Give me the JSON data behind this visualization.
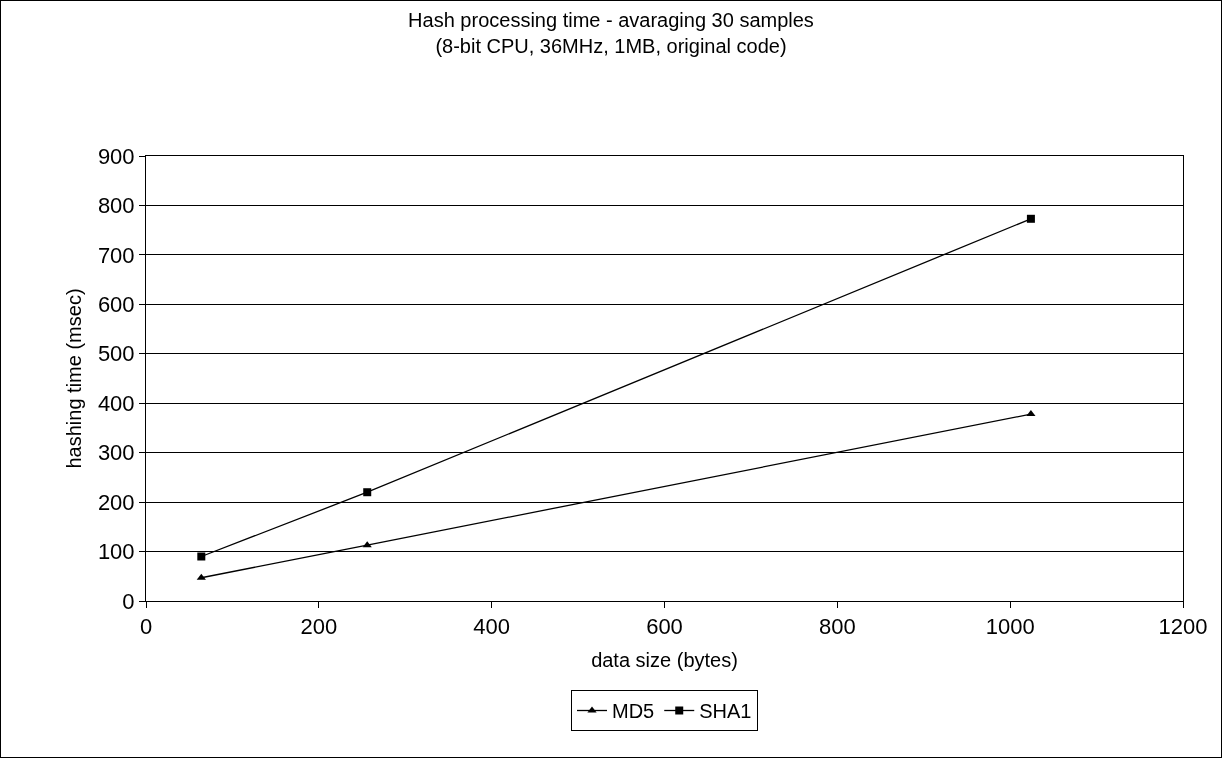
{
  "chart_data": {
    "type": "line",
    "title": "Hash processing time - avaraging 30 samples\n(8-bit CPU, 36MHz, 1MB, original code)",
    "xlabel": "data size (bytes)",
    "ylabel": "hashing time (msec)",
    "x": [
      64,
      256,
      1024
    ],
    "series": [
      {
        "name": "MD5",
        "color": "#000000",
        "marker": "triangle",
        "values": [
          47,
          113,
          378
        ]
      },
      {
        "name": "SHA1",
        "color": "#000000",
        "marker": "square",
        "values": [
          90,
          220,
          773
        ]
      }
    ],
    "xlim": [
      0,
      1200
    ],
    "xticks": [
      0,
      200,
      400,
      600,
      800,
      1000,
      1200
    ],
    "ylim": [
      0,
      900
    ],
    "yticks": [
      0,
      100,
      200,
      300,
      400,
      500,
      600,
      700,
      800,
      900
    ],
    "grid": "y",
    "legend": "bottom",
    "line_style": "solid"
  }
}
